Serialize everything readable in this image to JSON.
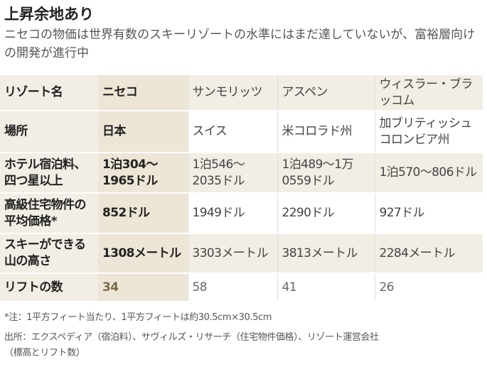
{
  "title": "上昇余地あり",
  "subtitle": "ニセコの物価は世界有数のスキーリゾートの水準にはまだ達していないが、富裕層向けの開発が進行中",
  "table": {
    "rows": [
      {
        "label": "リゾート名",
        "niseko": "ニセコ",
        "values": [
          "サンモリッツ",
          "アスペン",
          "ウィスラー・ブラッコム"
        ]
      },
      {
        "label": "場所",
        "niseko": "日本",
        "values": [
          "スイス",
          "米コロラド州",
          "加ブリティッシュコロンビア州"
        ]
      },
      {
        "label": "ホテル宿泊料、四つ星以上",
        "niseko": "1泊304～1965ドル",
        "values": [
          "1泊546～2035ドル",
          "1泊489～1万0559ドル",
          "1泊570～806ドル"
        ]
      },
      {
        "label": "高級住宅物件の平均価格*",
        "niseko": "852ドル",
        "values": [
          "1949ドル",
          "2290ドル",
          "927ドル"
        ]
      },
      {
        "label": "スキーができる山の高さ",
        "niseko": "1308メートル",
        "values": [
          "3303メートル",
          "3813メートル",
          "2284メートル"
        ]
      },
      {
        "label": "リフトの数",
        "niseko": "34",
        "values": [
          "58",
          "41",
          "26"
        ]
      }
    ]
  },
  "notes": {
    "footnote": "*注：1平方フィート当たり、1平方フィートは約30.5cm×30.5cm",
    "source_line1": "出所：エクスペディア（宿泊料）、サヴィルズ・リサーチ（住宅物件価格）、リゾート運営会社",
    "source_line2": "（標高とリフト数）"
  }
}
